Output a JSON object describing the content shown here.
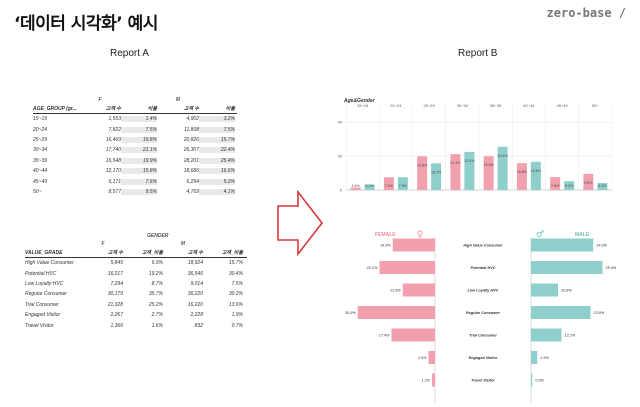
{
  "slide": {
    "title": "‘데이터 시각화’ 예시",
    "brand": "zero-base /"
  },
  "reportA": {
    "label": "Report A",
    "age_table": {
      "groups": [
        "F",
        "M"
      ],
      "headers": [
        "AGE_GROUP (gr...",
        "고객 수",
        "비율",
        "고객 수",
        "비율"
      ],
      "rows": [
        [
          "15~19",
          "1,553",
          "1.4%",
          "4,902",
          "3.2%"
        ],
        [
          "20~24",
          "7,822",
          "7.5%",
          "11,808",
          "7.5%"
        ],
        [
          "25~29",
          "16,469",
          "19.8%",
          "20,826",
          "15.7%"
        ],
        [
          "30~34",
          "17,740",
          "21.1%",
          "26,307",
          "22.4%"
        ],
        [
          "35~39",
          "16,548",
          "19.9%",
          "28,201",
          "25.4%"
        ],
        [
          "40~44",
          "12,170",
          "15.8%",
          "18,686",
          "16.6%"
        ],
        [
          "45~49",
          "6,171",
          "7.6%",
          "6,294",
          "5.2%"
        ],
        [
          "50~",
          "8,577",
          "9.5%",
          "4,769",
          "4.1%"
        ]
      ]
    },
    "gender_table": {
      "title": "GENDER",
      "groups": [
        "F",
        "M"
      ],
      "headers": [
        "VALUE_GRADE",
        "고객 수",
        "고객_비율",
        "고객 수",
        "고객_비율"
      ],
      "rows": [
        [
          "High Value Consumer",
          "5,845",
          "6.9%",
          "18,924",
          "15.7%"
        ],
        [
          "Potential HVC",
          "16,217",
          "19.2%",
          "36,546",
          "30.4%"
        ],
        [
          "Low Loyalty HVC",
          "7,294",
          "8.7%",
          "9,014",
          "7.5%"
        ],
        [
          "Regular Consumer",
          "30,179",
          "35.7%",
          "36,220",
          "30.2%"
        ],
        [
          "Trial Consumer",
          "21,328",
          "25.2%",
          "16,220",
          "13.6%"
        ],
        [
          "Engaged Visitor",
          "2,267",
          "2.7%",
          "2,228",
          "1.9%"
        ],
        [
          "Travel Visitor",
          "1,366",
          "1.6%",
          "832",
          "0.7%"
        ]
      ]
    }
  },
  "reportB": {
    "label": "Report B",
    "female_label": "FEMALE",
    "male_label": "MALE"
  },
  "colors": {
    "female": "#f3a0ae",
    "female_dark": "#ee8c9c",
    "male": "#8fcfcb",
    "male_dark": "#6fbfb9",
    "arrow": "#d8383a"
  },
  "chart_data": [
    {
      "type": "bar",
      "title": "Age&Gender",
      "categories": [
        "15~19",
        "20~24",
        "25~29",
        "30~34",
        "35~39",
        "40~44",
        "45~49",
        "50~"
      ],
      "yticks": [
        0,
        20,
        40
      ],
      "series": [
        {
          "values": [
            1.4,
            7.5,
            19.8,
            21.1,
            19.9,
            15.8,
            7.6,
            9.5
          ],
          "labels": [
            "1.4%",
            "7.5%",
            "19.8%",
            "21.1%",
            "19.9%",
            "15.8%",
            "7.6%",
            "9.5%"
          ]
        },
        {
          "values": [
            3.2,
            7.5,
            15.7,
            22.4,
            25.4,
            16.6,
            5.2,
            4.1
          ],
          "labels": [
            "3.2%",
            "7.5%",
            "15.7%",
            "22.4%",
            "25.4%",
            "16.6%",
            "5.2%",
            "4.1%"
          ]
        }
      ]
    },
    {
      "type": "bar",
      "orientation": "horizontal",
      "categories": [
        "High Value Consumer",
        "Potential HVC",
        "Low Loyalty HVC",
        "Regular Consumer",
        "Trial Consumer",
        "Engaged Visitor",
        "Travel Visitor"
      ],
      "series": [
        {
          "name": "FEMALE",
          "values": [
            16.9,
            22.2,
            12.9,
            30.9,
            17.4,
            2.6,
            1.2
          ],
          "labels": [
            "16.9%",
            "22.2%",
            "12.9%",
            "30.9%",
            "17.4%",
            "2.6%",
            "1.2%"
          ]
        },
        {
          "name": "MALE",
          "values": [
            24.9,
            28.6,
            10.8,
            23.8,
            12.2,
            2.5,
            0.5
          ],
          "labels": [
            "24.9%",
            "28.6%",
            "10.8%",
            "23.8%",
            "12.2%",
            "2.5%",
            "0.5%"
          ]
        }
      ]
    }
  ]
}
